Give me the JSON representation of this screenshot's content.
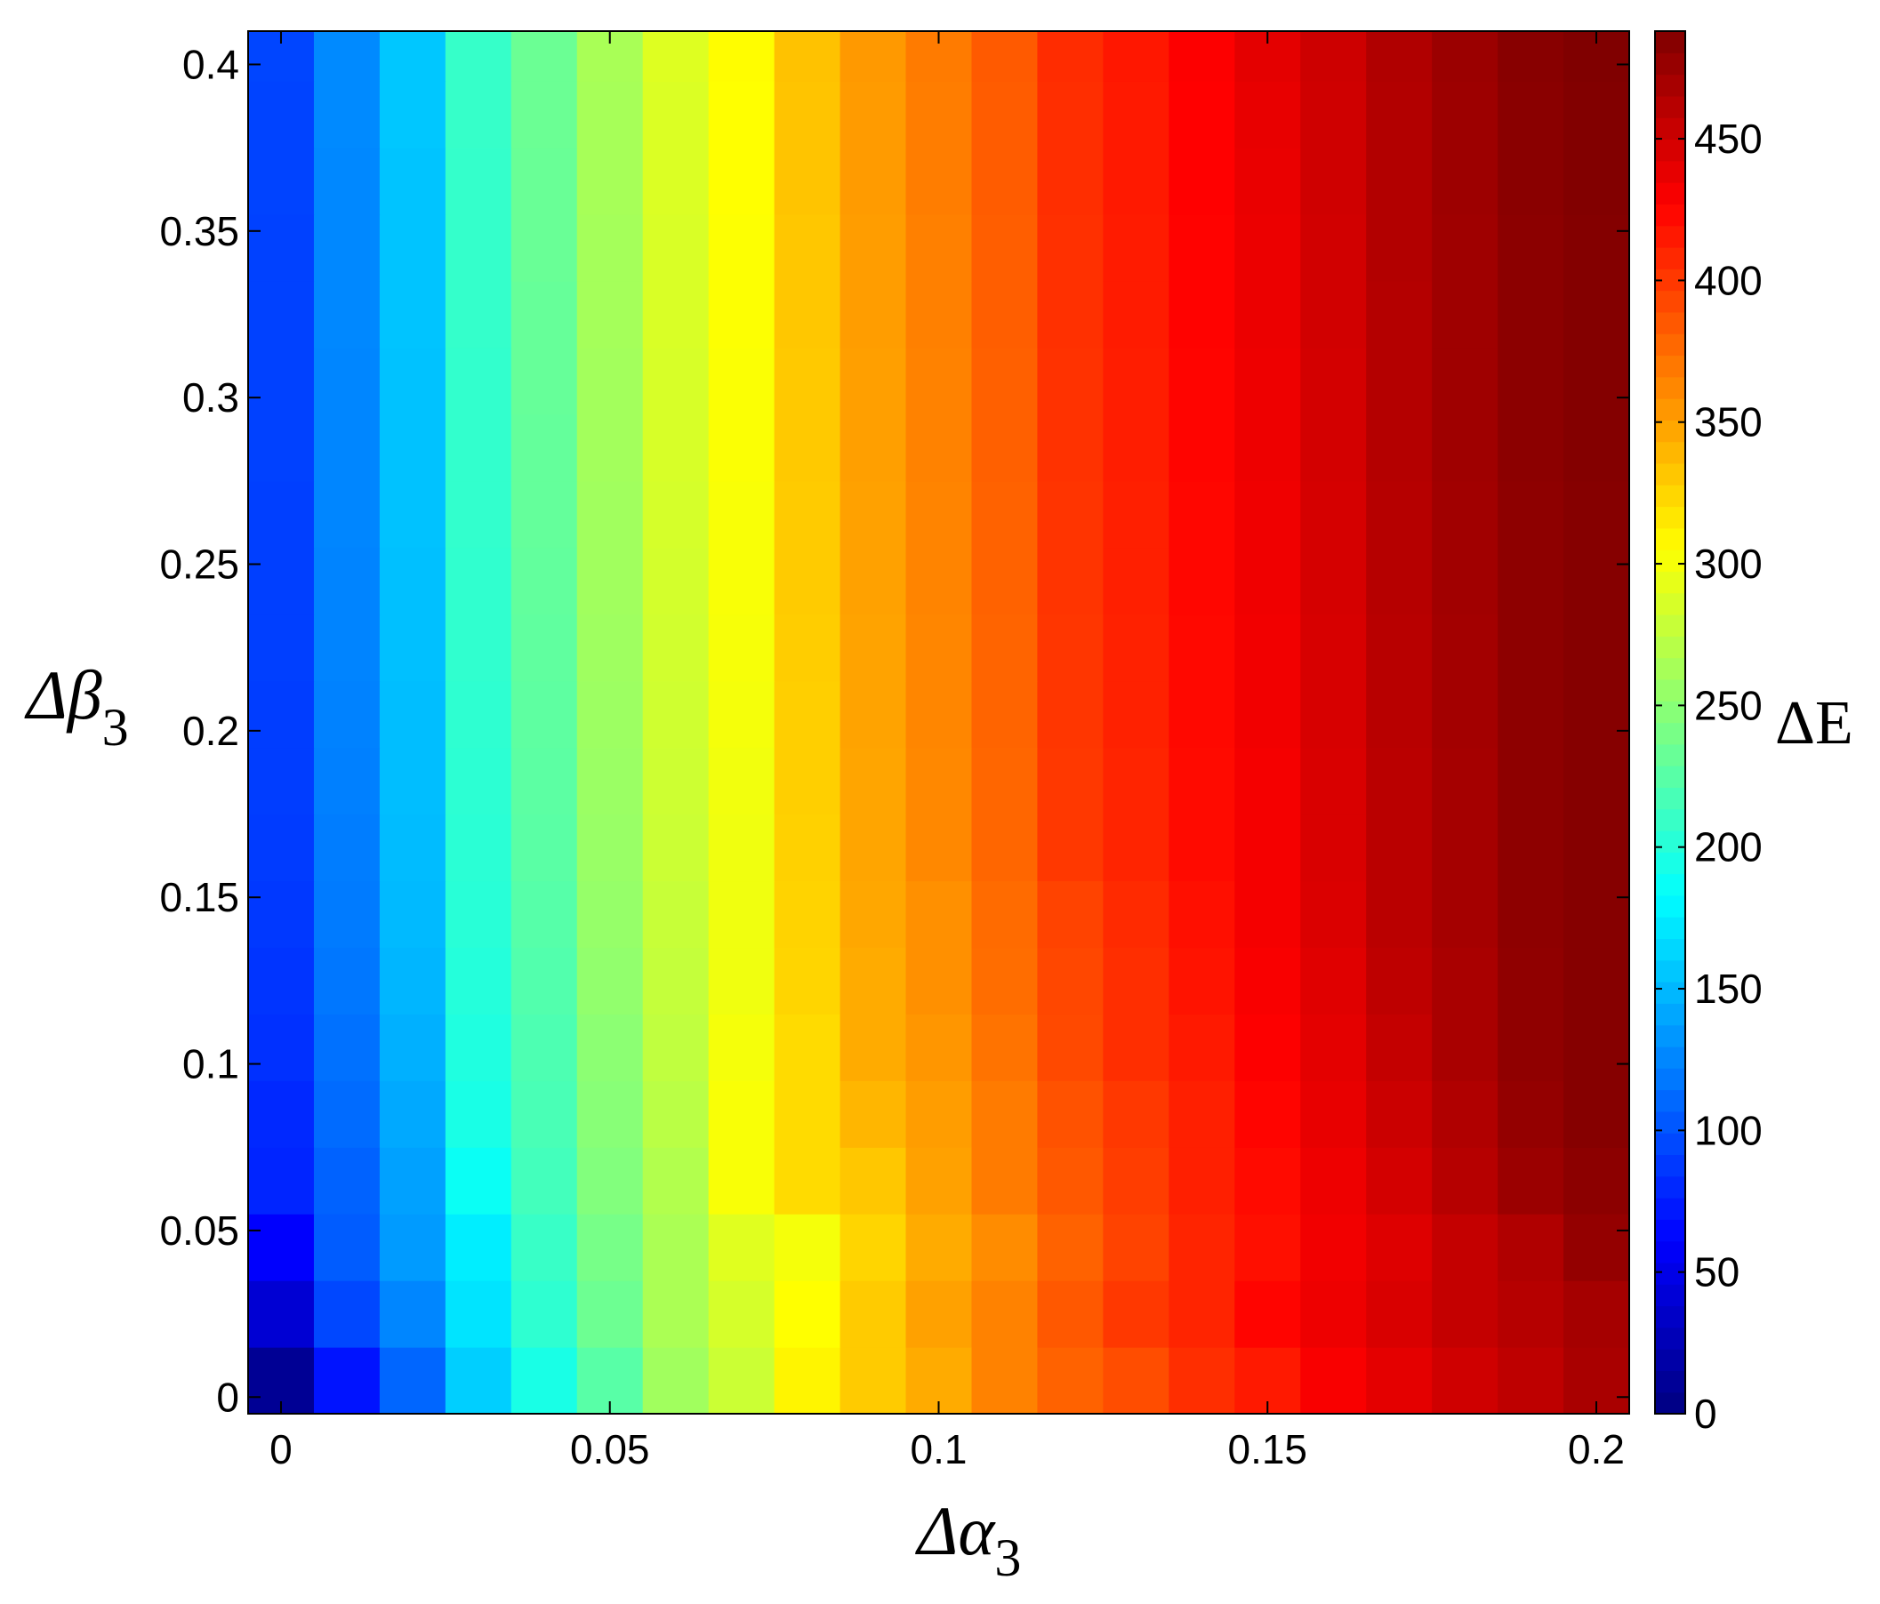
{
  "chart_data": {
    "type": "heatmap",
    "title": "",
    "xlabel": "Δα",
    "xlabel_sub": "3",
    "ylabel": "Δβ",
    "ylabel_sub": "3",
    "colorbar_label": "ΔE",
    "xlim": [
      -0.005,
      0.205
    ],
    "ylim": [
      -0.005,
      0.41
    ],
    "x_ticks": [
      {
        "v": 0,
        "label": "0"
      },
      {
        "v": 0.05,
        "label": "0.05"
      },
      {
        "v": 0.1,
        "label": "0.1"
      },
      {
        "v": 0.15,
        "label": "0.15"
      },
      {
        "v": 0.2,
        "label": "0.2"
      }
    ],
    "y_ticks": [
      {
        "v": 0,
        "label": "0"
      },
      {
        "v": 0.05,
        "label": "0.05"
      },
      {
        "v": 0.1,
        "label": "0.1"
      },
      {
        "v": 0.15,
        "label": "0.15"
      },
      {
        "v": 0.2,
        "label": "0.2"
      },
      {
        "v": 0.25,
        "label": "0.25"
      },
      {
        "v": 0.3,
        "label": "0.3"
      },
      {
        "v": 0.35,
        "label": "0.35"
      },
      {
        "v": 0.4,
        "label": "0.4"
      }
    ],
    "colorbar_range": [
      0,
      488
    ],
    "colorbar_ticks": [
      {
        "v": 0,
        "label": "0"
      },
      {
        "v": 50,
        "label": "50"
      },
      {
        "v": 100,
        "label": "100"
      },
      {
        "v": 150,
        "label": "150"
      },
      {
        "v": 200,
        "label": "200"
      },
      {
        "v": 250,
        "label": "250"
      },
      {
        "v": 300,
        "label": "300"
      },
      {
        "v": 350,
        "label": "350"
      },
      {
        "v": 400,
        "label": "400"
      },
      {
        "v": 450,
        "label": "450"
      }
    ],
    "colormap": "jet",
    "x": [
      0,
      0.01,
      0.02,
      0.03,
      0.04,
      0.05,
      0.06,
      0.07,
      0.08,
      0.09,
      0.1,
      0.11,
      0.12,
      0.13,
      0.14,
      0.15,
      0.16,
      0.17,
      0.18,
      0.19,
      0.2
    ],
    "y": [
      0,
      0.02,
      0.04,
      0.06,
      0.08,
      0.1,
      0.12,
      0.14,
      0.16,
      0.18,
      0.2,
      0.22,
      0.24,
      0.26,
      0.28,
      0.3,
      0.32,
      0.34,
      0.36,
      0.38,
      0.4
    ],
    "x_edges": [
      -0.005,
      0.005,
      0.015,
      0.025,
      0.035,
      0.045,
      0.055,
      0.065,
      0.075,
      0.085,
      0.095,
      0.105,
      0.115,
      0.125,
      0.135,
      0.145,
      0.155,
      0.165,
      0.175,
      0.185,
      0.195,
      0.205
    ],
    "y_edges": [
      -0.005,
      0.015,
      0.035,
      0.055,
      0.075,
      0.095,
      0.115,
      0.135,
      0.155,
      0.175,
      0.195,
      0.215,
      0.235,
      0.255,
      0.275,
      0.295,
      0.315,
      0.335,
      0.355,
      0.375,
      0.395,
      0.41
    ],
    "values": [
      [
        10,
        70,
        110,
        160,
        195,
        225,
        260,
        280,
        310,
        330,
        345,
        365,
        380,
        390,
        405,
        415,
        430,
        440,
        450,
        458,
        468
      ],
      [
        40,
        95,
        125,
        170,
        205,
        235,
        265,
        285,
        305,
        330,
        350,
        365,
        385,
        400,
        410,
        425,
        435,
        445,
        455,
        462,
        470
      ],
      [
        60,
        105,
        135,
        175,
        210,
        240,
        265,
        290,
        300,
        325,
        345,
        360,
        380,
        395,
        410,
        420,
        433,
        443,
        455,
        465,
        478
      ],
      [
        78,
        108,
        138,
        188,
        215,
        245,
        268,
        302,
        322,
        332,
        350,
        368,
        385,
        398,
        412,
        422,
        435,
        448,
        462,
        475,
        482
      ],
      [
        80,
        112,
        142,
        195,
        218,
        248,
        272,
        302,
        322,
        340,
        352,
        368,
        388,
        400,
        412,
        425,
        438,
        452,
        465,
        478,
        485
      ],
      [
        84,
        115,
        145,
        198,
        220,
        250,
        275,
        300,
        322,
        345,
        355,
        372,
        392,
        405,
        415,
        428,
        440,
        455,
        468,
        480,
        485
      ],
      [
        86,
        118,
        148,
        200,
        222,
        253,
        277,
        298,
        325,
        345,
        358,
        375,
        393,
        405,
        418,
        430,
        442,
        458,
        468,
        480,
        485
      ],
      [
        88,
        120,
        150,
        202,
        224,
        255,
        278,
        298,
        326,
        347,
        358,
        376,
        395,
        407,
        420,
        432,
        444,
        460,
        470,
        481,
        485
      ],
      [
        89,
        121,
        151,
        203,
        226,
        256,
        280,
        298,
        327,
        348,
        362,
        378,
        400,
        410,
        422,
        432,
        445,
        460,
        470,
        481,
        485
      ],
      [
        90,
        122,
        152,
        204,
        227,
        257,
        281,
        299,
        328,
        348,
        362,
        378,
        400,
        410,
        422,
        432,
        445,
        460,
        470,
        481,
        485
      ],
      [
        90,
        123,
        152,
        205,
        228,
        258,
        282,
        300,
        328,
        349,
        363,
        379,
        401,
        411,
        423,
        433,
        446,
        461,
        471,
        481,
        485
      ],
      [
        91,
        124,
        153,
        206,
        229,
        259,
        283,
        301,
        329,
        349,
        363,
        379,
        401,
        411,
        423,
        433,
        446,
        461,
        471,
        481,
        485
      ],
      [
        91,
        124,
        153,
        206,
        230,
        260,
        284,
        302,
        330,
        350,
        364,
        380,
        402,
        412,
        424,
        434,
        447,
        462,
        472,
        481,
        485
      ],
      [
        91,
        125,
        154,
        207,
        231,
        260,
        285,
        302,
        330,
        350,
        364,
        380,
        402,
        412,
        424,
        434,
        447,
        462,
        472,
        481,
        485
      ],
      [
        92,
        125,
        154,
        207,
        231,
        261,
        286,
        303,
        331,
        351,
        365,
        381,
        403,
        413,
        425,
        435,
        448,
        463,
        473,
        482,
        486
      ],
      [
        92,
        125,
        154,
        207,
        232,
        261,
        286,
        303,
        331,
        351,
        365,
        381,
        403,
        413,
        425,
        435,
        448,
        463,
        473,
        482,
        486
      ],
      [
        92,
        126,
        155,
        208,
        232,
        262,
        287,
        304,
        332,
        352,
        366,
        382,
        404,
        414,
        426,
        436,
        449,
        463,
        473,
        482,
        486
      ],
      [
        92,
        126,
        155,
        208,
        233,
        262,
        287,
        304,
        332,
        352,
        366,
        382,
        404,
        414,
        426,
        436,
        449,
        464,
        473,
        482,
        486
      ],
      [
        93,
        126,
        155,
        208,
        233,
        263,
        288,
        305,
        333,
        353,
        367,
        383,
        405,
        415,
        427,
        437,
        450,
        464,
        474,
        483,
        487
      ],
      [
        93,
        127,
        156,
        209,
        234,
        263,
        288,
        305,
        333,
        353,
        367,
        383,
        405,
        415,
        427,
        438,
        450,
        464,
        474,
        483,
        487
      ],
      [
        94,
        127,
        156,
        209,
        234,
        264,
        289,
        306,
        334,
        354,
        368,
        384,
        406,
        416,
        428,
        440,
        451,
        465,
        475,
        484,
        488
      ]
    ]
  }
}
